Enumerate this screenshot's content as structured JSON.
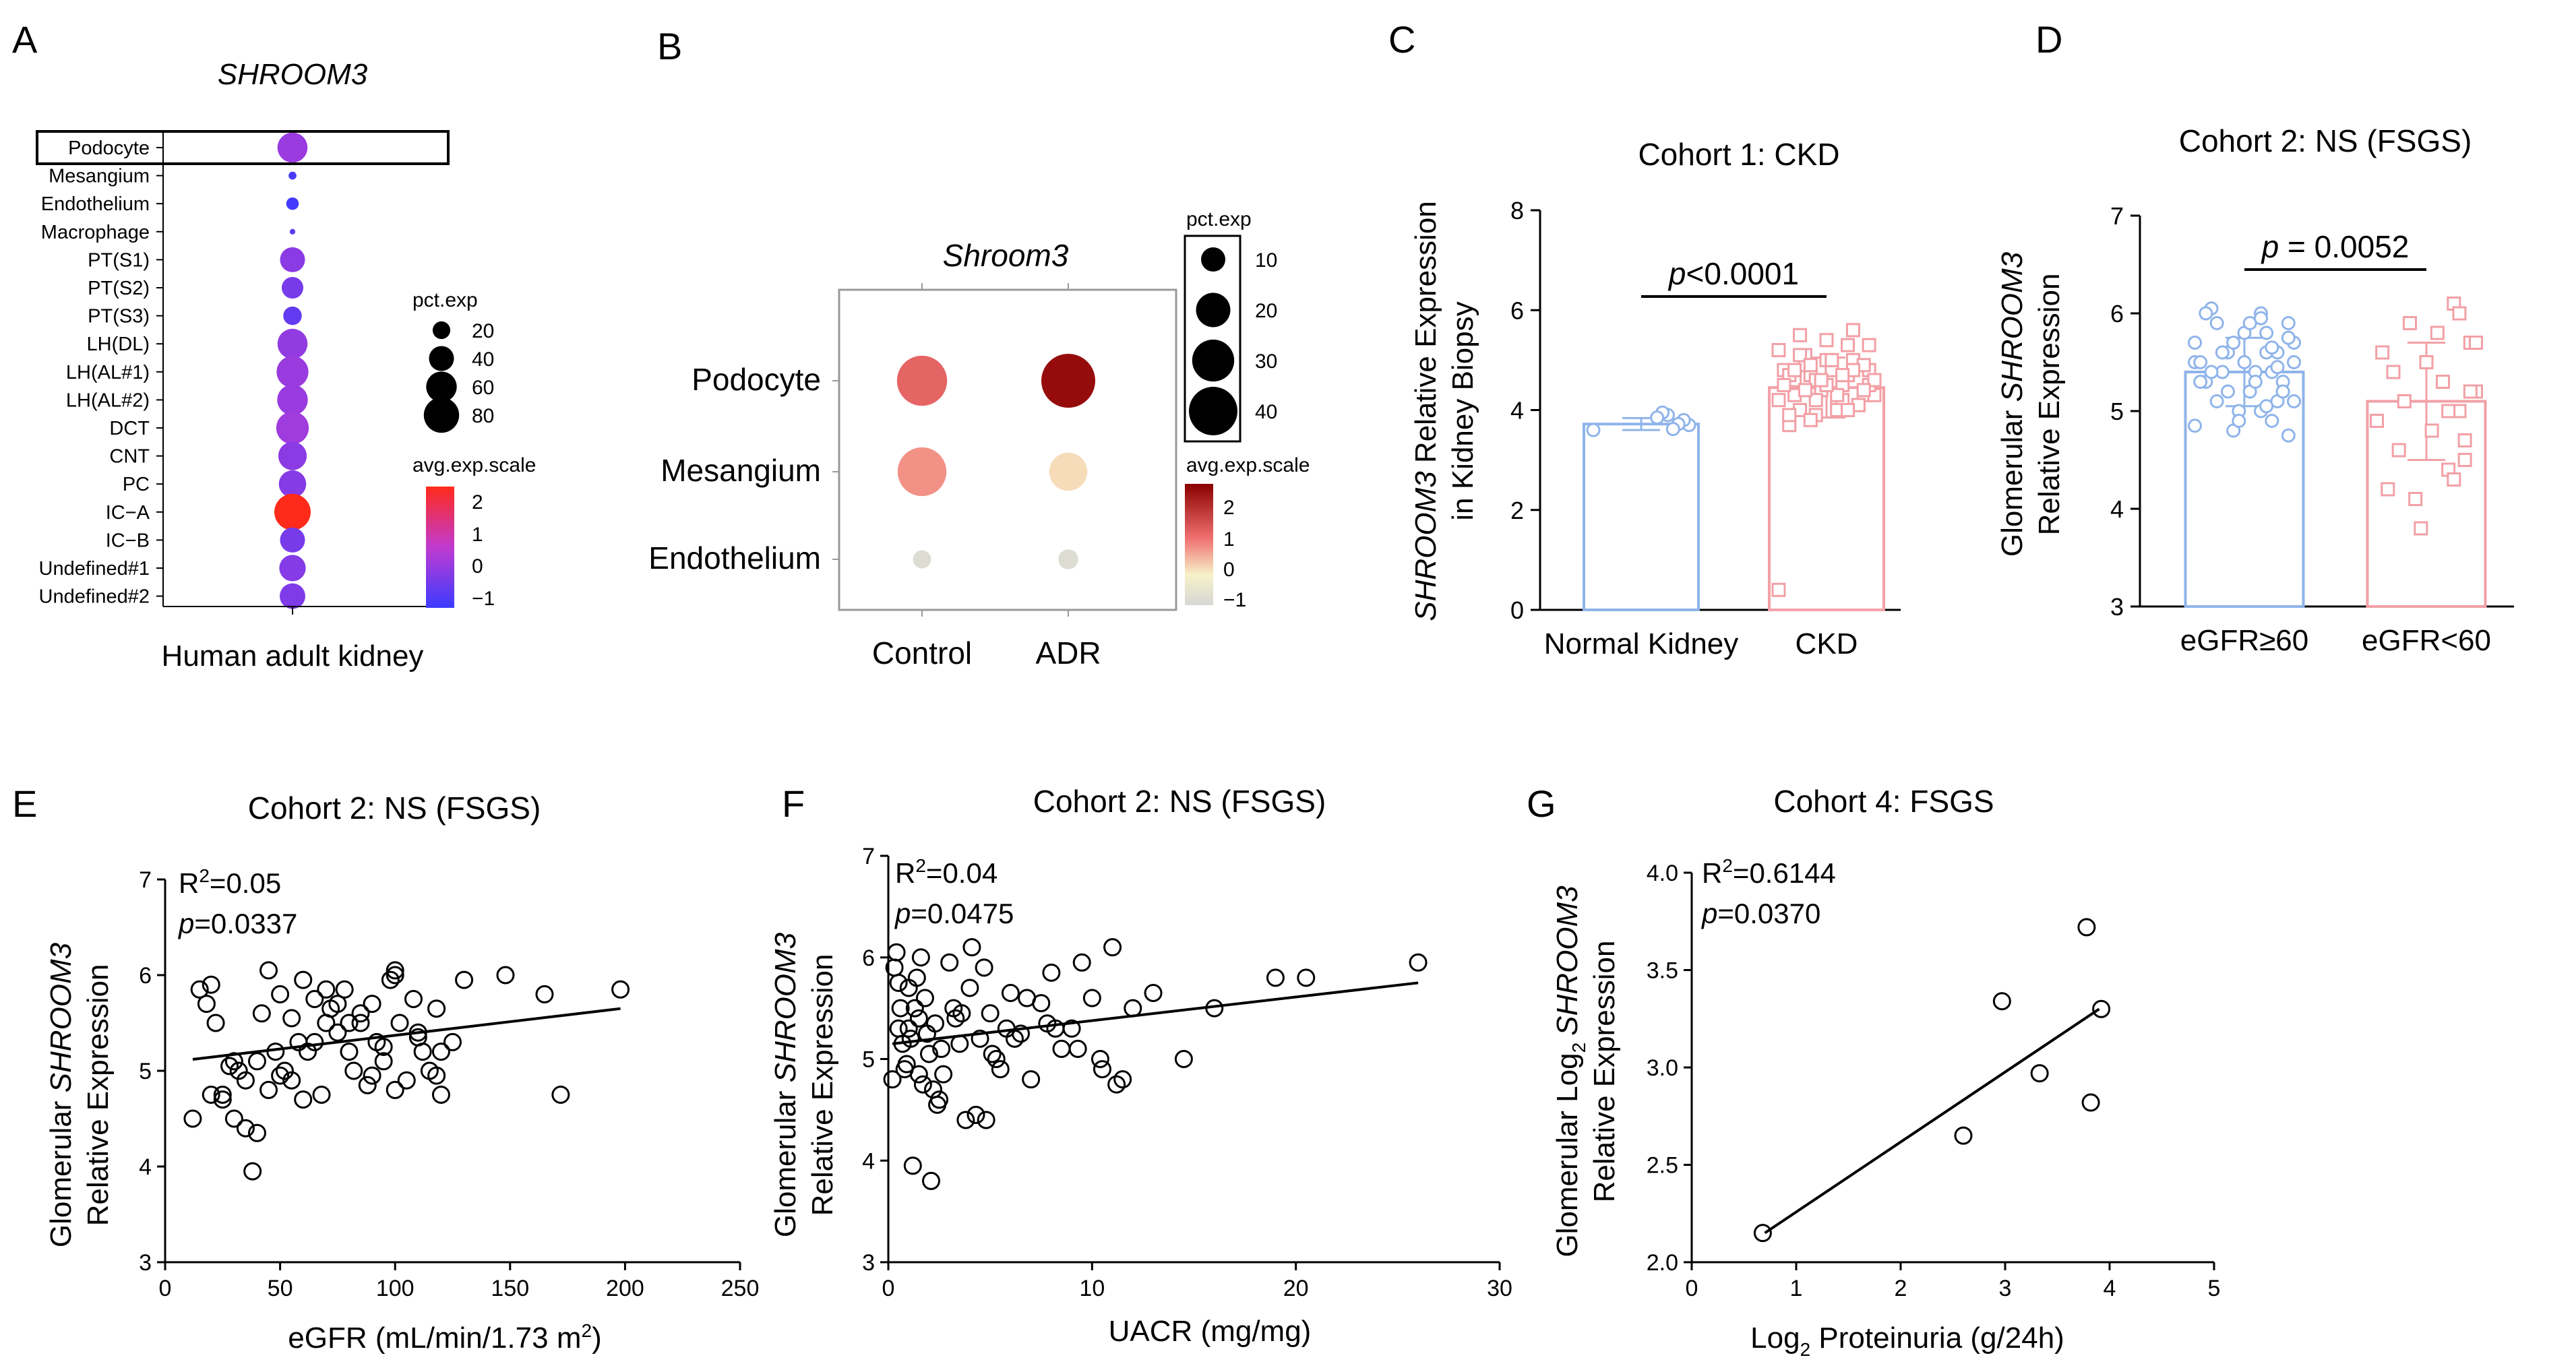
{
  "panel_labels": [
    "A",
    "B",
    "C",
    "D",
    "E",
    "F",
    "G"
  ],
  "colors": {
    "ink": "#000000",
    "blue": "#8fb4ea",
    "pink": "#f2a0a6",
    "low": "#3b3bff",
    "mid": "#c13bd1",
    "high": "#ff2a1a",
    "fsgs_gray": "#d6d6d6",
    "fsgs_cream": "#f7f2c8",
    "fsgs_red": "#8b0000"
  },
  "chart_data": [
    {
      "panel": "A",
      "type": "scatter",
      "subtype": "dotplot",
      "title": "SHROOM3",
      "xlabel": "Human adult kidney",
      "cell_types": [
        "Podocyte",
        "Mesangium",
        "Endothelium",
        "Macrophage",
        "PT(S1)",
        "PT(S2)",
        "PT(S3)",
        "LH(DL)",
        "LH(AL#1)",
        "LH(AL#2)",
        "DCT",
        "CNT",
        "PC",
        "IC−A",
        "IC−B",
        "Undefined#1",
        "Undefined#2"
      ],
      "pct_exp": [
        58,
        4,
        10,
        2,
        40,
        30,
        22,
        58,
        65,
        60,
        68,
        52,
        48,
        85,
        40,
        45,
        42
      ],
      "avg_exp_scale": [
        -0.1,
        -1.3,
        -1.4,
        -1.0,
        -0.3,
        -0.6,
        -0.9,
        -0.2,
        -0.1,
        -0.1,
        0.0,
        -0.3,
        -0.4,
        2.5,
        -0.6,
        -0.4,
        -0.5
      ],
      "highlight": "Podocyte",
      "size_legend": {
        "title": "pct.exp",
        "labels": [
          "20",
          "40",
          "60",
          "80"
        ],
        "values": [
          20,
          40,
          60,
          80
        ]
      },
      "color_legend": {
        "title": "avg.exp.scale",
        "labels": [
          "2",
          "1",
          "0",
          "−1"
        ],
        "range": [
          -1.5,
          2.5
        ]
      }
    },
    {
      "panel": "B",
      "type": "scatter",
      "subtype": "dotplot",
      "title": "Shroom3",
      "conditions": [
        "Control",
        "ADR"
      ],
      "cell_types": [
        "Podocyte",
        "Mesangium",
        "Endothelium"
      ],
      "pct_exp": [
        [
          38,
          44
        ],
        [
          36,
          22
        ],
        [
          5,
          6
        ]
      ],
      "avg_exp_scale": [
        [
          1.2,
          2.6
        ],
        [
          0.7,
          0.0
        ],
        [
          -1.0,
          -1.0
        ]
      ],
      "size_legend": {
        "title": "pct.exp",
        "labels": [
          "10",
          "20",
          "30",
          "40"
        ],
        "values": [
          10,
          20,
          30,
          40
        ]
      },
      "color_legend": {
        "title": "avg.exp.scale",
        "labels": [
          "2",
          "1",
          "0",
          "−1"
        ],
        "range": [
          -1.2,
          2.8
        ]
      }
    },
    {
      "panel": "C",
      "type": "bar",
      "title": "Cohort 1: CKD",
      "ylabel_italic": "SHROOM3",
      "ylabel_rest": " Relative Expression",
      "ylabel_line2": "in Kidney Biopsy",
      "categories": [
        "Normal Kidney",
        "CKD"
      ],
      "values": [
        3.72,
        4.45
      ],
      "errors": [
        0.12,
        0.6
      ],
      "ylim": [
        0,
        8
      ],
      "yticks": [
        "0",
        "2",
        "4",
        "6",
        "8"
      ],
      "p_prefix": "p",
      "p_text": "<0.0001",
      "points": [
        [
          3.6,
          3.7,
          3.8,
          3.72,
          3.62,
          3.9,
          3.95,
          3.85
        ],
        [
          0.4,
          4.6,
          4.8,
          4.3,
          4.1,
          5.0,
          5.3,
          4.5,
          4.2,
          4.9,
          5.4,
          4.4,
          3.9,
          4.7,
          5.1,
          4.0,
          4.6,
          3.7,
          4.8,
          5.2,
          4.3,
          4.5,
          4.9,
          4.1,
          5.6,
          4.7,
          4.2,
          4.0,
          4.8,
          5.0,
          4.4,
          4.6,
          3.8,
          4.9,
          5.1,
          4.3,
          4.7,
          4.5,
          4.2,
          4.6,
          5.3,
          4.4,
          4.1,
          4.8,
          4.0,
          4.7,
          4.3,
          5.0,
          4.5,
          4.6,
          4.2,
          4.9,
          4.4,
          5.5,
          4.8,
          3.9
        ]
      ]
    },
    {
      "panel": "D",
      "type": "bar",
      "title": "Cohort 2: NS (FSGS)",
      "ylabel_pre": "Glomerular ",
      "ylabel_italic": "SHROOM3",
      "ylabel_line2": "Relative Expression",
      "categories": [
        "eGFR≥60",
        "eGFR<60"
      ],
      "values": [
        5.4,
        5.1
      ],
      "errors": [
        0.35,
        0.6
      ],
      "ylim": [
        3,
        7
      ],
      "yticks": [
        "3",
        "4",
        "5",
        "6",
        "7"
      ],
      "p_prefix": "p",
      "p_text": " = 0.0052",
      "points": [
        [
          5.5,
          5.7,
          5.9,
          5.3,
          5.1,
          4.9,
          5.6,
          6.0,
          5.4,
          5.2,
          5.8,
          5.0,
          4.8,
          5.6,
          5.4,
          5.9,
          6.05,
          5.3,
          5.5,
          5.7,
          5.1,
          4.75,
          5.2,
          5.6,
          5.4,
          5.8,
          5.0,
          5.3,
          5.9,
          5.5,
          4.9,
          5.7,
          5.2,
          5.6,
          5.1,
          5.4,
          6.0,
          5.3,
          4.85,
          5.5,
          5.75,
          5.2,
          5.45,
          5.65,
          5.05,
          5.95
        ],
        [
          4.9,
          5.2,
          5.7,
          4.5,
          5.0,
          6.1,
          4.4,
          5.3,
          5.8,
          4.8,
          5.5,
          3.8,
          4.1,
          5.9,
          5.1,
          4.6,
          5.4,
          4.2,
          5.6,
          4.9,
          5.7,
          5.2,
          4.7,
          6.0,
          4.3,
          5.0
        ]
      ]
    },
    {
      "panel": "E",
      "type": "scatter",
      "title": "Cohort 2: NS (FSGS)",
      "xlabel": "eGFR (mL/min/1.73 m",
      "xlabel_sup": "2",
      "xlabel_end": ")",
      "ylabel_pre": "Glomerular ",
      "ylabel_italic": "SHROOM3",
      "ylabel_line2": "Relative Expression",
      "xlim": [
        0,
        250
      ],
      "ylim": [
        3,
        7
      ],
      "xticks": [
        "0",
        "50",
        "100",
        "150",
        "200",
        "250"
      ],
      "yticks": [
        "3",
        "4",
        "5",
        "6",
        "7"
      ],
      "r2_text": "=0.05",
      "p_text": "=0.0337",
      "fit": {
        "x": [
          12,
          198
        ],
        "y": [
          5.12,
          5.65
        ]
      },
      "x": [
        12,
        15,
        18,
        20,
        22,
        25,
        28,
        30,
        32,
        35,
        38,
        40,
        42,
        45,
        48,
        50,
        52,
        55,
        58,
        60,
        62,
        65,
        68,
        70,
        72,
        75,
        78,
        80,
        82,
        85,
        88,
        90,
        92,
        95,
        98,
        100,
        102,
        105,
        108,
        110,
        112,
        115,
        118,
        120,
        125,
        130,
        60,
        70,
        80,
        90,
        100,
        110,
        50,
        40,
        30,
        20,
        95,
        85,
        75,
        65,
        55,
        45,
        35,
        25,
        148,
        165,
        172,
        198,
        120,
        118,
        100
      ],
      "y": [
        4.5,
        5.85,
        5.7,
        4.75,
        5.5,
        4.7,
        5.05,
        4.5,
        5.0,
        4.4,
        3.95,
        5.1,
        5.6,
        4.8,
        5.2,
        5.8,
        5.0,
        4.9,
        5.3,
        5.95,
        5.2,
        5.75,
        4.75,
        5.5,
        5.65,
        5.4,
        5.85,
        5.2,
        5.0,
        5.6,
        4.85,
        5.7,
        5.3,
        5.1,
        5.95,
        4.8,
        5.5,
        4.9,
        5.75,
        5.35,
        5.2,
        5.0,
        5.65,
        4.75,
        5.3,
        5.95,
        4.7,
        5.85,
        5.5,
        4.95,
        6.0,
        5.4,
        4.95,
        4.35,
        5.1,
        5.9,
        5.25,
        5.5,
        5.7,
        5.3,
        5.55,
        6.05,
        4.9,
        4.75,
        6.0,
        5.8,
        4.75,
        5.85,
        5.2,
        4.95,
        6.05
      ]
    },
    {
      "panel": "F",
      "type": "scatter",
      "title": "Cohort 2: NS (FSGS)",
      "xlabel": "UACR (mg/mg)",
      "ylabel_pre": "Glomerular ",
      "ylabel_italic": "SHROOM3",
      "ylabel_line2": "Relative Expression",
      "xlim": [
        0,
        30
      ],
      "ylim": [
        3,
        7
      ],
      "xticks": [
        "0",
        "10",
        "20",
        "30"
      ],
      "yticks": [
        "3",
        "4",
        "5",
        "6",
        "7"
      ],
      "r2_text": "=0.04",
      "p_text": "=0.0475",
      "fit": {
        "x": [
          0.2,
          26
        ],
        "y": [
          5.15,
          5.75
        ]
      },
      "x": [
        0.2,
        0.3,
        0.5,
        0.6,
        0.8,
        1.0,
        1.1,
        1.2,
        1.4,
        1.5,
        1.7,
        1.8,
        2.0,
        2.1,
        2.3,
        2.5,
        2.7,
        3.0,
        3.2,
        3.5,
        3.8,
        4.0,
        4.3,
        4.5,
        4.7,
        5.0,
        5.3,
        5.5,
        5.8,
        6.0,
        6.5,
        7.0,
        7.5,
        8.0,
        8.5,
        9.0,
        9.5,
        10.0,
        10.5,
        11.0,
        11.5,
        12.0,
        13.0,
        14.5,
        16.0,
        19.0,
        20.5,
        26.0,
        0.4,
        0.7,
        0.9,
        1.3,
        1.6,
        1.9,
        2.2,
        2.6,
        3.3,
        4.1,
        4.8,
        6.2,
        7.8,
        9.3,
        11.2,
        0.5,
        1.0,
        1.5,
        2.4,
        3.6,
        5.1,
        6.8,
        8.2,
        10.4
      ],
      "y": [
        4.8,
        5.9,
        5.3,
        5.5,
        4.9,
        5.7,
        5.2,
        3.95,
        5.8,
        5.4,
        4.75,
        5.6,
        5.05,
        3.8,
        5.35,
        4.6,
        4.85,
        5.95,
        5.5,
        5.15,
        4.4,
        5.7,
        4.45,
        5.2,
        5.9,
        5.45,
        5.0,
        4.9,
        5.3,
        5.65,
        5.25,
        4.8,
        5.55,
        5.85,
        5.1,
        5.3,
        5.95,
        5.6,
        4.9,
        6.1,
        4.8,
        5.5,
        5.65,
        5.0,
        5.5,
        5.8,
        5.8,
        5.95,
        6.05,
        5.15,
        4.95,
        5.5,
        6.0,
        5.25,
        4.7,
        5.1,
        5.4,
        6.1,
        4.4,
        5.2,
        5.35,
        5.1,
        4.75,
        5.75,
        5.3,
        4.85,
        4.55,
        5.45,
        5.05,
        5.6,
        5.3,
        5.0
      ]
    },
    {
      "panel": "G",
      "type": "scatter",
      "title": "Cohort 4: FSGS",
      "xlabel_pre": "Log",
      "xlabel_sub": "2",
      "xlabel": " Proteinuria (g/24h)",
      "ylabel_pre": "Glomerular Log",
      "ylabel_sub": "2",
      "ylabel_italic": "SHROOM3",
      "ylabel_line2": "Relative Expression",
      "xlim": [
        0,
        5
      ],
      "ylim": [
        2.0,
        4.0
      ],
      "xticks": [
        "0",
        "1",
        "2",
        "3",
        "4",
        "5"
      ],
      "yticks": [
        "2.0",
        "2.5",
        "3.0",
        "3.5",
        "4.0"
      ],
      "r2_text": "=0.6144",
      "p_text": "=0.0370",
      "fit": {
        "x": [
          0.7,
          3.9
        ],
        "y": [
          2.15,
          3.3
        ]
      },
      "x": [
        0.68,
        2.6,
        2.97,
        3.33,
        3.78,
        3.82,
        3.92
      ],
      "y": [
        2.15,
        2.65,
        3.34,
        2.97,
        3.72,
        2.82,
        3.3
      ]
    }
  ]
}
